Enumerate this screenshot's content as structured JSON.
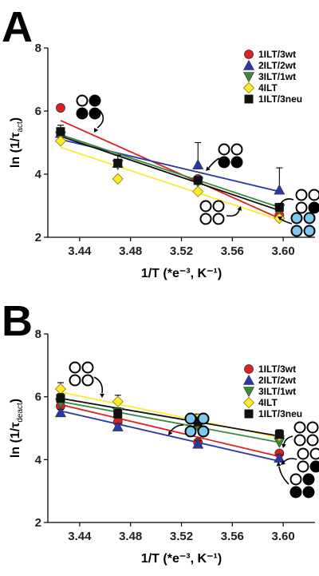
{
  "chart_data": [
    {
      "panel_label": "A",
      "type": "scatter",
      "xlabel": "1/T (*e⁻³, K⁻¹)",
      "ylabel": "ln (1/τ",
      "ylabel_sub": "act",
      "ylabel_close": ")",
      "xlim": [
        3.415,
        3.625
      ],
      "ylim": [
        2,
        8
      ],
      "xticks": [
        3.44,
        3.48,
        3.52,
        3.56,
        3.6
      ],
      "xtick_labels": [
        "3.44",
        "3.48",
        "3.52",
        "3.56",
        "3.60"
      ],
      "yticks": [
        2,
        4,
        6,
        8
      ],
      "ytick_labels": [
        "2",
        "4",
        "6",
        "8"
      ],
      "legend_position": "top-right",
      "series": [
        {
          "name": "1ILT/3wt",
          "color": "#e02020",
          "marker": "circle",
          "x": [
            3.425,
            3.533,
            3.597
          ],
          "y": [
            6.1,
            3.85,
            2.7
          ],
          "err": [
            0.1,
            0,
            0
          ],
          "fit": [
            [
              3.425,
              5.7
            ],
            [
              3.597,
              2.6
            ]
          ]
        },
        {
          "name": "2ILT/2wt",
          "color": "#2838a8",
          "marker": "triangle-up",
          "x": [
            3.425,
            3.47,
            3.533,
            3.597
          ],
          "y": [
            5.3,
            4.35,
            4.3,
            3.5
          ],
          "err": [
            0.15,
            0.1,
            0.7,
            0.7
          ],
          "fit": [
            [
              3.425,
              5.1
            ],
            [
              3.597,
              3.45
            ]
          ]
        },
        {
          "name": "3ILT/1wt",
          "color": "#3a8a3a",
          "marker": "triangle-down",
          "x": [
            3.425,
            3.47,
            3.533,
            3.597
          ],
          "y": [
            5.2,
            4.3,
            3.75,
            2.9
          ],
          "err": [
            0.1,
            0.1,
            0.1,
            0.1
          ],
          "fit": [
            [
              3.425,
              5.25
            ],
            [
              3.597,
              2.95
            ]
          ]
        },
        {
          "name": "4ILT",
          "color": "#ffe830",
          "marker": "diamond",
          "x": [
            3.425,
            3.47,
            3.533,
            3.597
          ],
          "y": [
            5.05,
            3.85,
            3.45,
            2.6
          ],
          "err": [
            0,
            0,
            0,
            0
          ],
          "fit": [
            [
              3.425,
              4.85
            ],
            [
              3.597,
              2.55
            ]
          ]
        },
        {
          "name": "1ILT/3neu",
          "color": "#111111",
          "marker": "square",
          "x": [
            3.425,
            3.47,
            3.533,
            3.597
          ],
          "y": [
            5.35,
            4.35,
            3.8,
            2.95
          ],
          "err": [
            0.2,
            0.25,
            0.1,
            0.1
          ],
          "fit": [
            [
              3.425,
              5.2
            ],
            [
              3.597,
              2.85
            ]
          ]
        }
      ]
    },
    {
      "panel_label": "B",
      "type": "scatter",
      "xlabel": "1/T (*e⁻³, K⁻¹)",
      "ylabel": "ln (1/τ",
      "ylabel_sub": "deact",
      "ylabel_close": ")",
      "xlim": [
        3.415,
        3.625
      ],
      "ylim": [
        2,
        8
      ],
      "xticks": [
        3.44,
        3.48,
        3.52,
        3.56,
        3.6
      ],
      "xtick_labels": [
        "3.44",
        "3.48",
        "3.52",
        "3.56",
        "3.60"
      ],
      "yticks": [
        2,
        4,
        6,
        8
      ],
      "ytick_labels": [
        "2",
        "4",
        "6",
        "8"
      ],
      "legend_position": "top-right",
      "series": [
        {
          "name": "1ILT/3wt",
          "color": "#e02020",
          "marker": "circle",
          "x": [
            3.425,
            3.47,
            3.533,
            3.597
          ],
          "y": [
            5.7,
            5.2,
            4.55,
            4.2
          ],
          "err": [
            0.15,
            0.1,
            0.1,
            0.1
          ],
          "fit": [
            [
              3.425,
              5.75
            ],
            [
              3.597,
              4.1
            ]
          ]
        },
        {
          "name": "2ILT/2wt",
          "color": "#2838a8",
          "marker": "triangle-up",
          "x": [
            3.425,
            3.47,
            3.533,
            3.597
          ],
          "y": [
            5.5,
            5.05,
            4.5,
            4.05
          ],
          "err": [
            0.1,
            0.1,
            0.1,
            0.1
          ],
          "fit": [
            [
              3.425,
              5.55
            ],
            [
              3.597,
              3.95
            ]
          ]
        },
        {
          "name": "3ILT/1wt",
          "color": "#3a8a3a",
          "marker": "triangle-down",
          "x": [
            3.425,
            3.47,
            3.533,
            3.597
          ],
          "y": [
            5.8,
            5.5,
            5.05,
            4.55
          ],
          "err": [
            0.15,
            0.15,
            0.15,
            0.15
          ],
          "fit": [
            [
              3.425,
              5.85
            ],
            [
              3.597,
              4.55
            ]
          ]
        },
        {
          "name": "4ILT",
          "color": "#ffe830",
          "marker": "diamond",
          "x": [
            3.425,
            3.47,
            3.533,
            3.597
          ],
          "y": [
            6.25,
            5.85,
            5.3,
            4.75
          ],
          "err": [
            0.2,
            0.2,
            0.15,
            0.15
          ],
          "fit": [
            [
              3.425,
              6.15
            ],
            [
              3.597,
              4.7
            ]
          ]
        },
        {
          "name": "1ILT/3neu",
          "color": "#111111",
          "marker": "square",
          "x": [
            3.425,
            3.47,
            3.533,
            3.597
          ],
          "y": [
            5.95,
            5.45,
            5.2,
            4.8
          ],
          "err": [
            0.15,
            0.15,
            0.15,
            0.15
          ],
          "fit": [
            [
              3.425,
              5.95
            ],
            [
              3.597,
              4.75
            ]
          ]
        }
      ]
    }
  ]
}
